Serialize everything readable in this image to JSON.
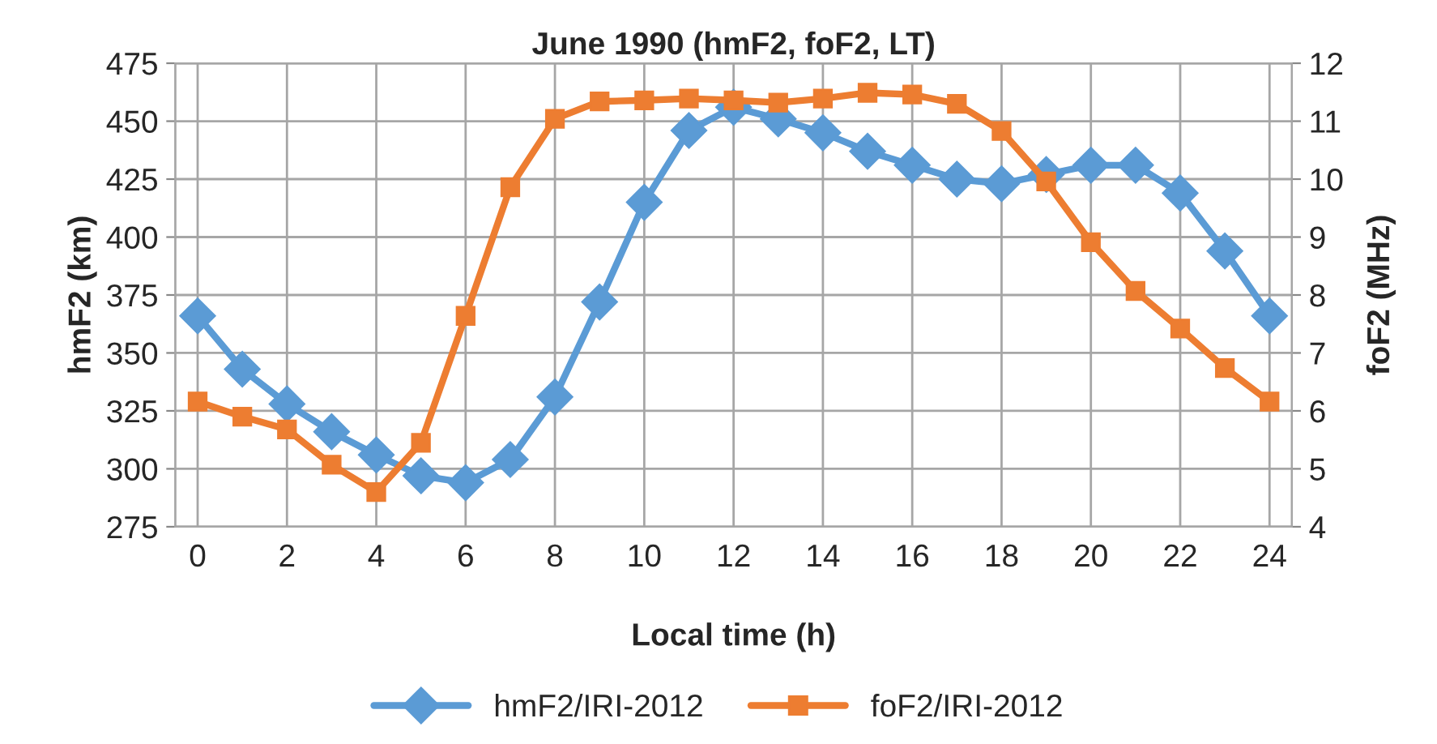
{
  "chart_data": {
    "type": "line",
    "title": "June 1990 (hmF2, foF2, LT)",
    "xlabel": "Local time (h)",
    "ylabel": "hmF2 (km)",
    "y2label": "foF2 (MHz)",
    "x": [
      0,
      1,
      2,
      3,
      4,
      5,
      6,
      7,
      8,
      9,
      10,
      11,
      12,
      13,
      14,
      15,
      16,
      17,
      18,
      19,
      20,
      21,
      22,
      23,
      24
    ],
    "series": [
      {
        "name": "hmF2/IRI-2012",
        "color": "#5b9bd5",
        "marker": "diamond",
        "values": [
          366,
          343,
          328,
          316,
          306,
          297,
          294,
          304,
          331,
          372,
          415,
          446,
          456,
          451,
          445,
          437,
          431,
          425,
          423,
          427,
          431,
          431,
          419,
          394,
          366
        ]
      },
      {
        "name": "foF2/IRI-2012",
        "color": "#ed7d31",
        "marker": "square",
        "axis": "y2",
        "values": [
          6.16,
          5.9,
          5.68,
          5.07,
          4.6,
          5.45,
          7.64,
          9.86,
          11.04,
          11.34,
          11.36,
          11.39,
          11.36,
          11.32,
          11.39,
          11.49,
          11.46,
          11.3,
          10.83,
          9.96,
          8.91,
          8.07,
          7.42,
          6.74,
          6.16
        ]
      }
    ],
    "xlim": [
      -0.5,
      24.5
    ],
    "xticks": [
      0,
      2,
      4,
      6,
      8,
      10,
      12,
      14,
      16,
      18,
      20,
      22,
      24
    ],
    "ylim": [
      275,
      475
    ],
    "yticks": [
      275,
      300,
      325,
      350,
      375,
      400,
      425,
      450,
      475
    ],
    "y2lim": [
      4,
      12
    ],
    "y2ticks": [
      4,
      5,
      6,
      7,
      8,
      9,
      10,
      11,
      12
    ],
    "grid": true,
    "legend": "bottom",
    "line_style": "solid"
  }
}
